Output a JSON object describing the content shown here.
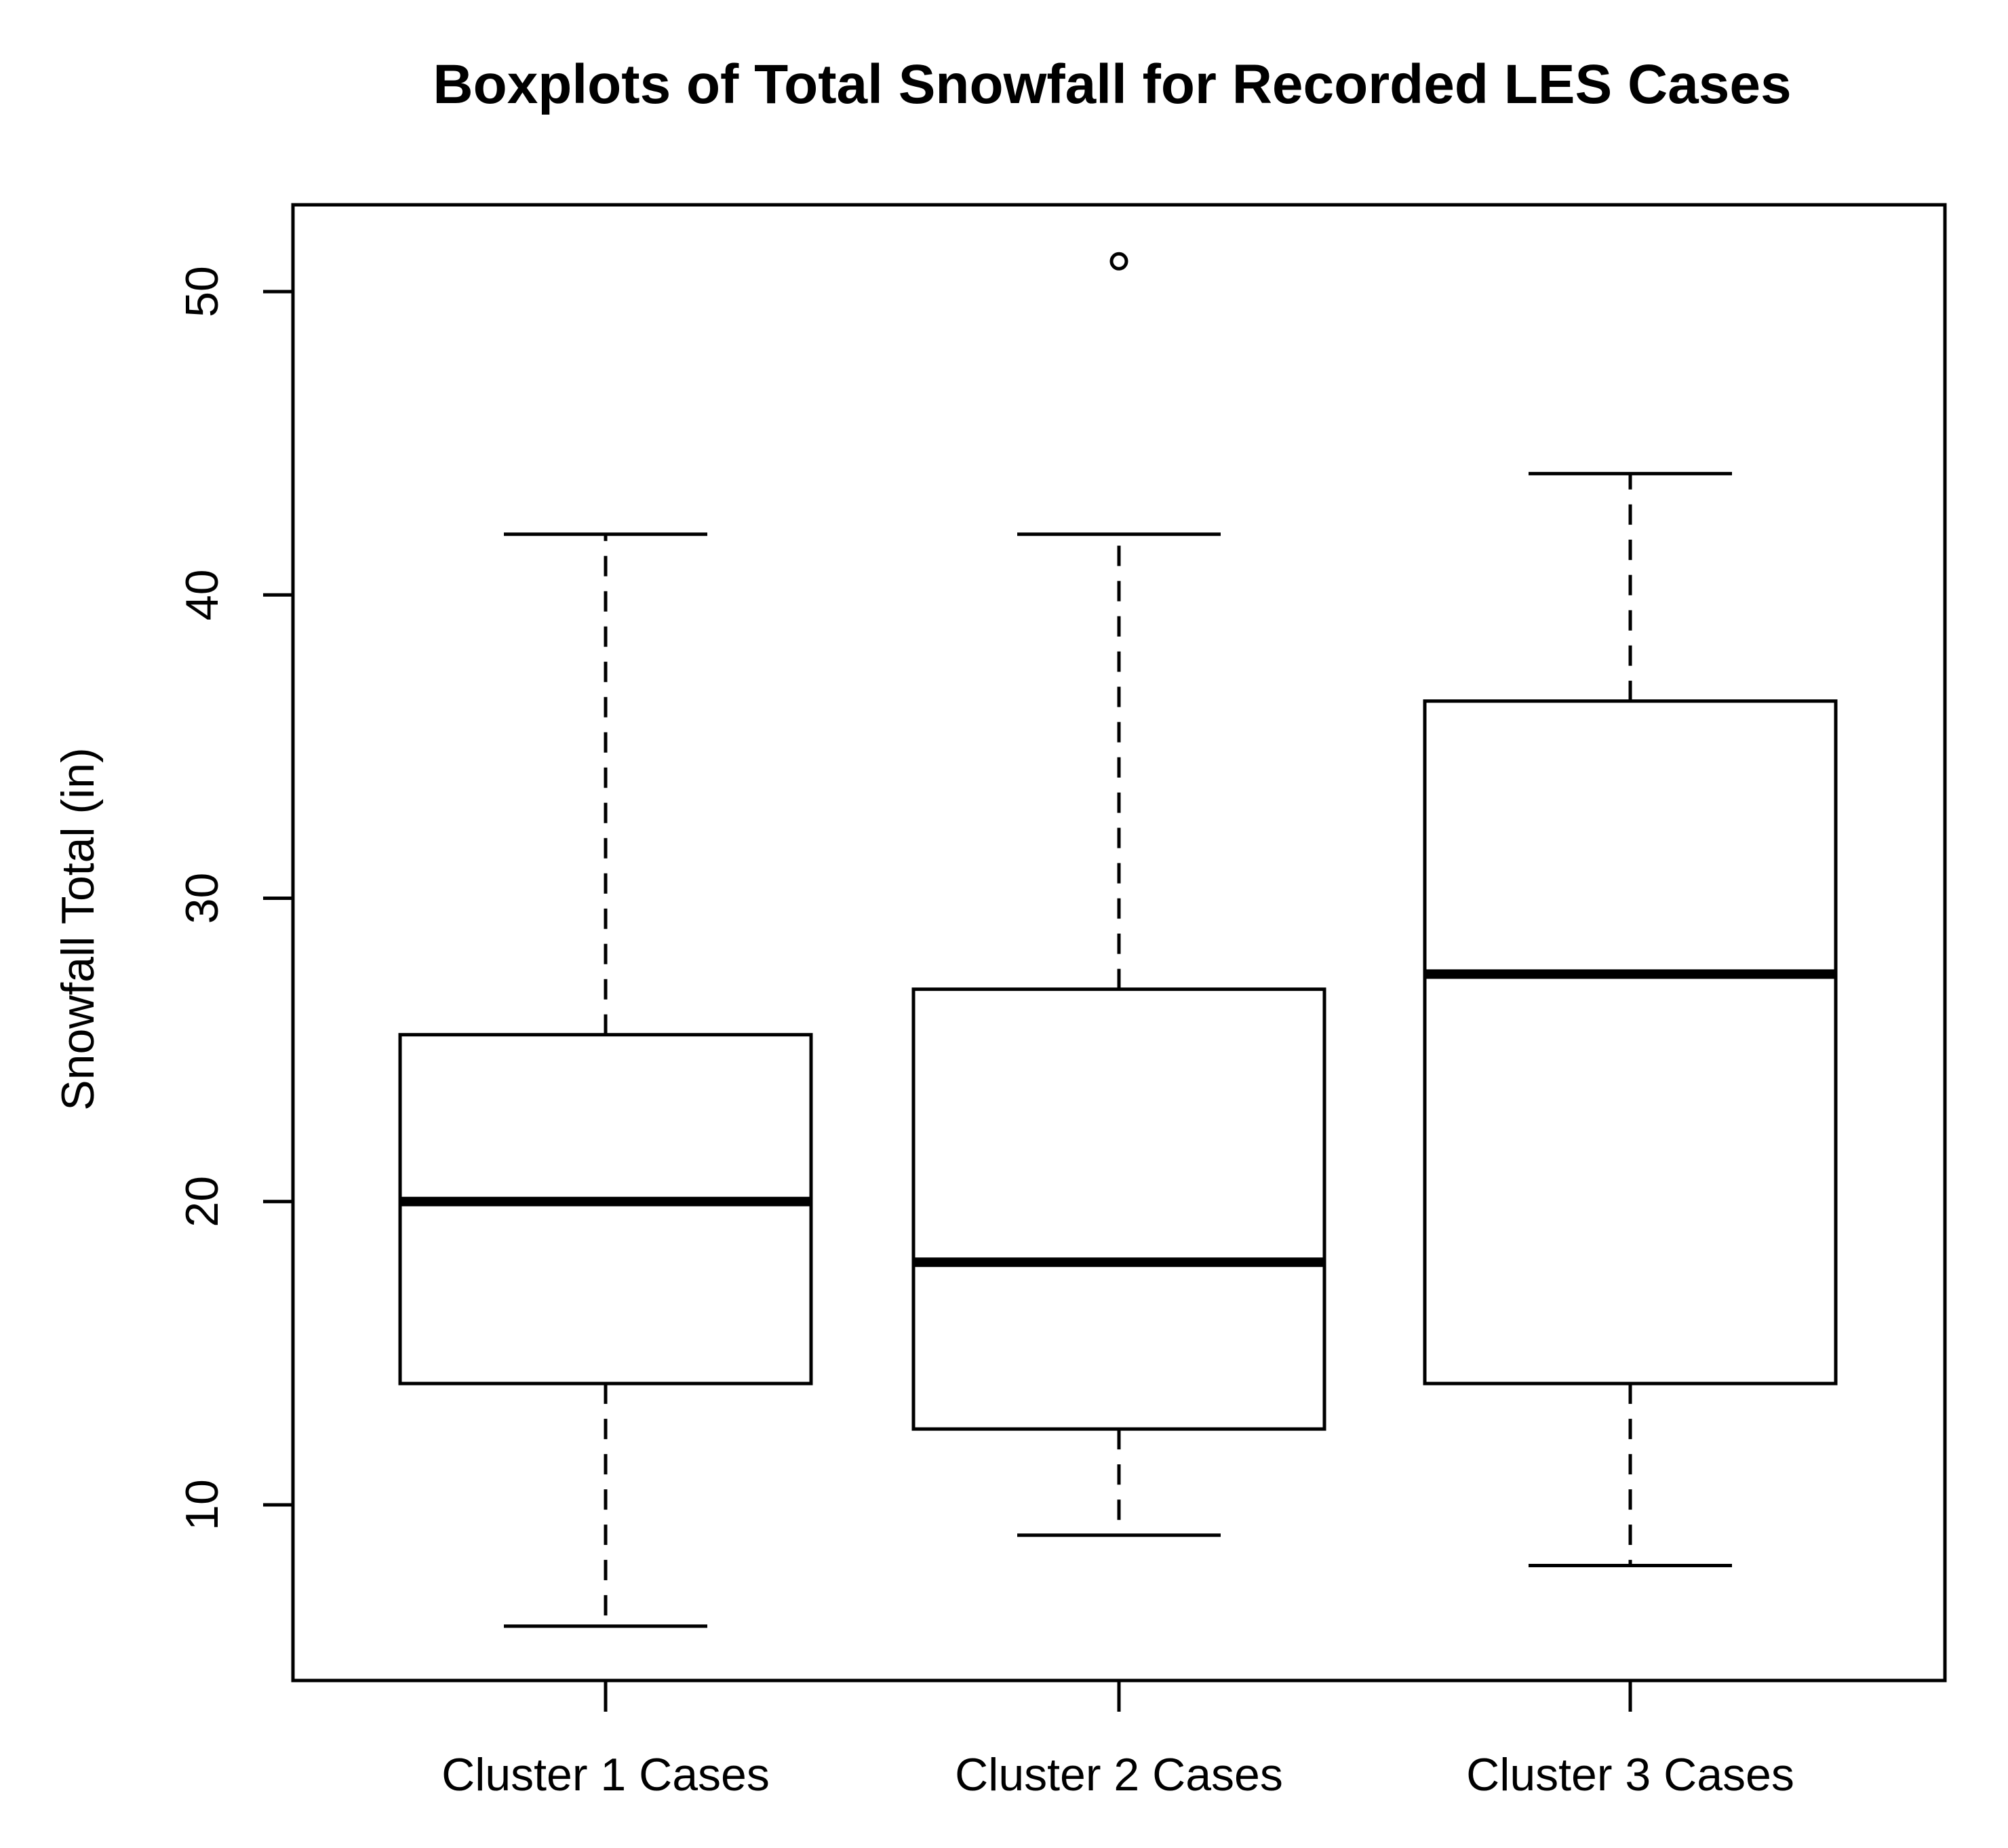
{
  "chart_data": {
    "type": "boxplot",
    "title": "Boxplots of Total Snowfall for Recorded LES Cases",
    "xlabel": "",
    "ylabel": "Snowfall Total (in)",
    "ylim": [
      4.3,
      52.8
    ],
    "yticks": [
      10,
      20,
      30,
      40,
      50
    ],
    "grid": false,
    "categories": [
      "Cluster 1 Cases",
      "Cluster 2 Cases",
      "Cluster 3 Cases"
    ],
    "boxes": [
      {
        "name": "Cluster 1 Cases",
        "whisker_low": 6,
        "q1": 14,
        "median": 20,
        "q3": 25.5,
        "whisker_high": 42,
        "outliers": []
      },
      {
        "name": "Cluster 2 Cases",
        "whisker_low": 9,
        "q1": 12.5,
        "median": 18,
        "q3": 27,
        "whisker_high": 42,
        "outliers": [
          51
        ]
      },
      {
        "name": "Cluster 3 Cases",
        "whisker_low": 8,
        "q1": 14,
        "median": 27.5,
        "q3": 36.5,
        "whisker_high": 44,
        "outliers": []
      }
    ]
  }
}
